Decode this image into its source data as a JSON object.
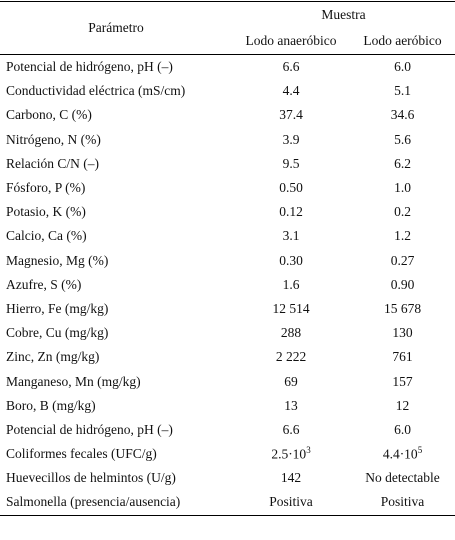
{
  "table": {
    "header": {
      "parameter": "Parámetro",
      "group": "Muestra",
      "columns": [
        "Lodo anaeróbico",
        "Lodo aeróbico"
      ]
    },
    "rows": [
      [
        "Potencial de hidrógeno, pH (–)",
        "6.6",
        "6.0"
      ],
      [
        "Conductividad eléctrica (mS/cm)",
        "4.4",
        "5.1"
      ],
      [
        "Carbono, C (%)",
        "37.4",
        "34.6"
      ],
      [
        "Nitrógeno, N (%)",
        "3.9",
        "5.6"
      ],
      [
        "Relación C/N (–)",
        "9.5",
        "6.2"
      ],
      [
        "Fósforo, P (%)",
        "0.50",
        "1.0"
      ],
      [
        "Potasio, K (%)",
        "0.12",
        "0.2"
      ],
      [
        "Calcio, Ca (%)",
        "3.1",
        "1.2"
      ],
      [
        "Magnesio, Mg (%)",
        "0.30",
        "0.27"
      ],
      [
        "Azufre, S (%)",
        "1.6",
        "0.90"
      ],
      [
        "Hierro, Fe (mg/kg)",
        "12 514",
        "15 678"
      ],
      [
        "Cobre, Cu (mg/kg)",
        "288",
        "130"
      ],
      [
        "Zinc, Zn (mg/kg)",
        "2 222",
        "761"
      ],
      [
        "Manganeso, Mn (mg/kg)",
        "69",
        "157"
      ],
      [
        "Boro, B (mg/kg)",
        "13",
        "12"
      ],
      [
        "Potencial de hidrógeno, pH (–)",
        "6.6",
        "6.0"
      ],
      [
        "Coliformes fecales (UFC/g)",
        {
          "base": "2.5·10",
          "exp": "3"
        },
        {
          "base": "4.4·10",
          "exp": "5"
        }
      ],
      [
        "Huevecillos de helmintos (U/g)",
        "142",
        "No detectable"
      ],
      [
        "Salmonella (presencia/ausencia)",
        "Positiva",
        "Positiva"
      ]
    ]
  }
}
